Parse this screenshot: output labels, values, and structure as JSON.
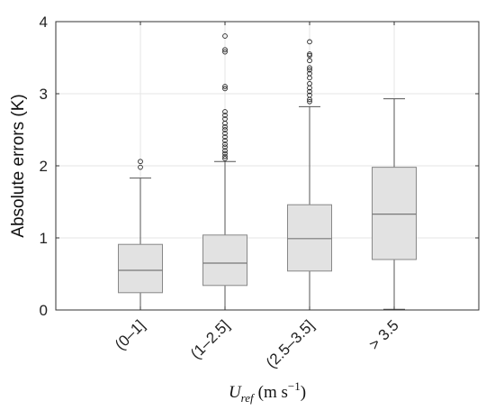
{
  "chart_data": {
    "type": "boxplot",
    "categories": [
      "(0–1]",
      "(1–2.5]",
      "(2.5–3.5]",
      "> 3.5"
    ],
    "ylabel": "Absolute errors (K)",
    "xlabel": {
      "symbol": "U",
      "subscript": "ref",
      "unit_open": "(m s",
      "exponent": "−1",
      "unit_close": ")"
    },
    "ylim": [
      0,
      4
    ],
    "yticks": [
      0,
      1,
      2,
      3,
      4
    ],
    "grid": true,
    "colors": {
      "box_fill": "#e2e2e2",
      "box_edge": "#888888",
      "median": "#777777",
      "whisker": "#555555",
      "outlier": "#222222",
      "grid": "#e6e6e6",
      "axis": "#333333"
    },
    "boxes": [
      {
        "category": "(0–1]",
        "whisker_low": 0.0,
        "q1": 0.24,
        "median": 0.55,
        "q3": 0.91,
        "whisker_high": 1.83,
        "outliers": [
          1.98,
          2.06
        ]
      },
      {
        "category": "(1–2.5]",
        "whisker_low": 0.0,
        "q1": 0.34,
        "median": 0.65,
        "q3": 1.04,
        "whisker_high": 2.06,
        "outliers": [
          2.1,
          2.13,
          2.17,
          2.21,
          2.26,
          2.3,
          2.35,
          2.4,
          2.45,
          2.5,
          2.54,
          2.59,
          2.65,
          2.7,
          2.75,
          3.07,
          3.1,
          3.58,
          3.61,
          3.8
        ]
      },
      {
        "category": "(2.5–3.5]",
        "whisker_low": 0.0,
        "q1": 0.54,
        "median": 0.99,
        "q3": 1.46,
        "whisker_high": 2.82,
        "outliers": [
          2.89,
          2.92,
          2.98,
          3.03,
          3.08,
          3.14,
          3.22,
          3.28,
          3.33,
          3.36,
          3.46,
          3.53,
          3.55,
          3.72
        ]
      },
      {
        "category": "> 3.5",
        "whisker_low": 0.01,
        "q1": 0.7,
        "median": 1.33,
        "q3": 1.98,
        "whisker_high": 2.93,
        "outliers": []
      }
    ]
  }
}
